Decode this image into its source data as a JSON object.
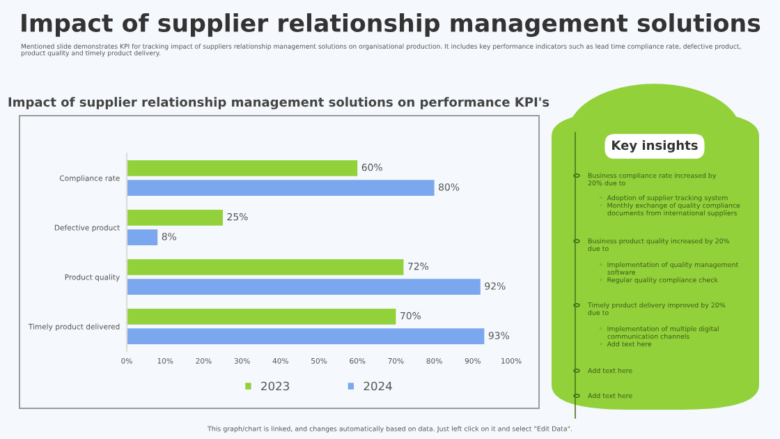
{
  "chart_data": {
    "type": "bar",
    "orientation": "horizontal",
    "title": "Impact of supplier relationship management solutions",
    "subtitle": "Mentioned slide demonstrates KPI for tracking impact of suppliers relationship management solutions on organisational production. It includes key performance indicators such as lead time compliance rate, defective product,\nproduct quality and timely product delivery.",
    "categories": [
      "Compliance rate",
      "Defective product",
      "Product quality",
      "Timely product delivered"
    ],
    "series": [
      {
        "name": "2023",
        "color": "#92d13a",
        "values": [
          60,
          25,
          72,
          70
        ]
      },
      {
        "name": "2024",
        "color": "#7aa7ee",
        "values": [
          80,
          8,
          92,
          93
        ]
      }
    ],
    "xlim": [
      0,
      100
    ],
    "xticks": [
      {
        "value": 0,
        "label": "0%"
      },
      {
        "value": 10,
        "label": "10%"
      },
      {
        "value": 20,
        "label": "20%"
      },
      {
        "value": 30,
        "label": "30%"
      },
      {
        "value": 40,
        "label": "40%"
      },
      {
        "value": 50,
        "label": "50%"
      },
      {
        "value": 60,
        "label": "60%"
      },
      {
        "value": 70,
        "label": "70%"
      },
      {
        "value": 80,
        "label": "80%"
      },
      {
        "value": 90,
        "label": "90%"
      },
      {
        "value": 100,
        "label": "100%"
      }
    ],
    "value_labels": [
      [
        "60%",
        "25%",
        "72%",
        "70%"
      ],
      [
        "80%",
        "8%",
        "92%",
        "93%"
      ]
    ],
    "legend": "bottom",
    "grid": false,
    "annotations": [
      "Impact of supplier relationship management solutions on performance KPI's",
      "Key insights",
      "Business compliance rate increased by\n20% due to",
      "◦  Adoption of supplier tracking system\n◦  Monthly exchange of quality compliance\n    documents from international suppliers",
      "Business product quality increased by 20%\ndue to",
      "◦  Implementation of quality management\n    software\n◦  Regular quality compliance check",
      "Timely product delivery improved by 20%\ndue to",
      "◦  Implementation of multiple digital\n    communication channels\n◦  Add text here",
      "Add text here",
      "Add text here",
      "This graph/chart is linked, and changes automatically based on data. Just left click on it and select \"Edit Data\"."
    ]
  }
}
